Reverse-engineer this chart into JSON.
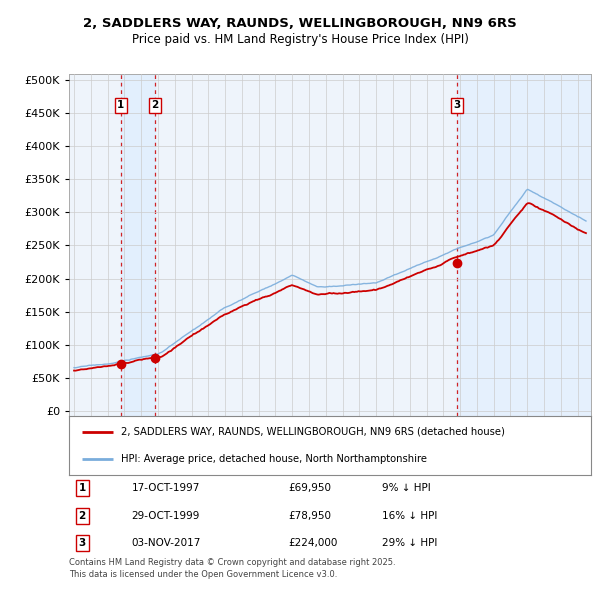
{
  "title1": "2, SADDLERS WAY, RAUNDS, WELLINGBOROUGH, NN9 6RS",
  "title2": "Price paid vs. HM Land Registry's House Price Index (HPI)",
  "ytick_values": [
    0,
    50000,
    100000,
    150000,
    200000,
    250000,
    300000,
    350000,
    400000,
    450000,
    500000
  ],
  "transactions": [
    {
      "date_str": "17-OCT-1997",
      "date_num": 1997.79,
      "price": 69950,
      "label": "1",
      "hpi_pct": "9% ↓ HPI"
    },
    {
      "date_str": "29-OCT-1999",
      "date_num": 1999.82,
      "price": 78950,
      "label": "2",
      "hpi_pct": "16% ↓ HPI"
    },
    {
      "date_str": "03-NOV-2017",
      "date_num": 2017.84,
      "price": 224000,
      "label": "3",
      "hpi_pct": "29% ↓ HPI"
    }
  ],
  "legend_line1": "2, SADDLERS WAY, RAUNDS, WELLINGBOROUGH, NN9 6RS (detached house)",
  "legend_line2": "HPI: Average price, detached house, North Northamptonshire",
  "footnote": "Contains HM Land Registry data © Crown copyright and database right 2025.\nThis data is licensed under the Open Government Licence v3.0.",
  "property_color": "#cc0000",
  "hpi_color": "#7aaddc",
  "shade_color": "#ddeeff",
  "plot_bg": "#eef4fb",
  "grid_color": "#cccccc",
  "vline_color": "#cc0000",
  "xlim_start": 1994.7,
  "xlim_end": 2025.8,
  "ylim_min": -8000,
  "ylim_max": 510000
}
